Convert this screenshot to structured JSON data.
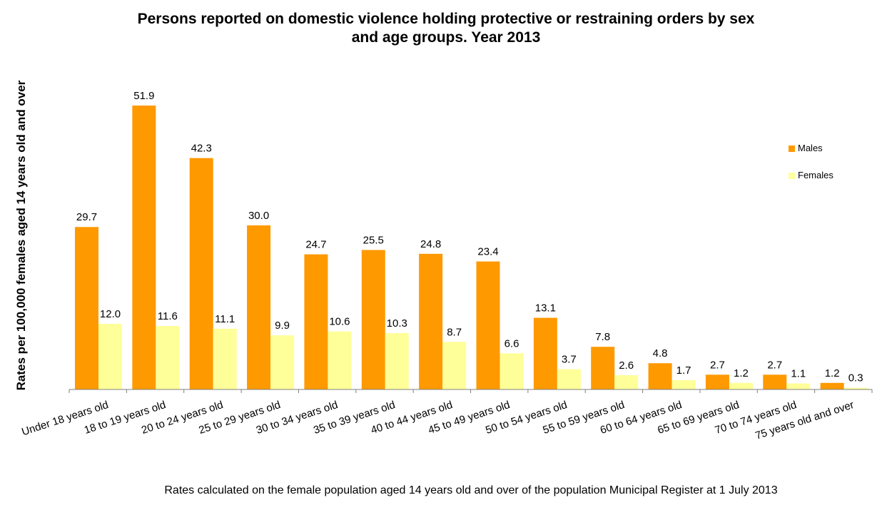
{
  "chart_data": {
    "type": "bar",
    "title_line1": "Persons reported on domestic violence holding protective or restraining orders by sex",
    "title_line2": "and age groups. Year 2013",
    "ylabel": "Rates per 100,000 females aged 14 years old and over",
    "xlabel": "Rates calculated on the female population aged 14 years old and over of the population Municipal Register at 1 July 2013",
    "categories": [
      "Under 18 years old",
      "18 to 19 years old",
      "20 to 24 years old",
      "25 to 29 years old",
      "30 to 34 years old",
      "35 to 39 years old",
      "40 to 44 years old",
      "45 to 49 years old",
      "50 to 54 years old",
      "55 to 59 years old",
      "60 to 64 years old",
      "65 to 69 years old",
      "70 to 74 years old",
      "75 years old and over"
    ],
    "series": [
      {
        "name": "Males",
        "color": "#FF9900",
        "values": [
          29.7,
          51.9,
          42.3,
          30.0,
          24.7,
          25.5,
          24.8,
          23.4,
          13.1,
          7.8,
          4.8,
          2.7,
          2.7,
          1.2
        ],
        "labels": [
          "29.7",
          "51.9",
          "42.3",
          "30.0",
          "24.7",
          "25.5",
          "24.8",
          "23.4",
          "13.1",
          "7.8",
          "4.8",
          "2.7",
          "2.7",
          "1.2"
        ]
      },
      {
        "name": "Females",
        "color": "#FFFF99",
        "values": [
          12.0,
          11.6,
          11.1,
          9.9,
          10.6,
          10.3,
          8.7,
          6.6,
          3.7,
          2.6,
          1.7,
          1.2,
          1.1,
          0.3
        ],
        "labels": [
          "12.0",
          "11.6",
          "11.1",
          "9.9",
          "10.6",
          "10.3",
          "8.7",
          "6.6",
          "3.7",
          "2.6",
          "1.7",
          "1.2",
          "1.1",
          "0.3"
        ]
      }
    ],
    "ylim": [
      0,
      52
    ],
    "grid": false,
    "legend_position": "right"
  }
}
